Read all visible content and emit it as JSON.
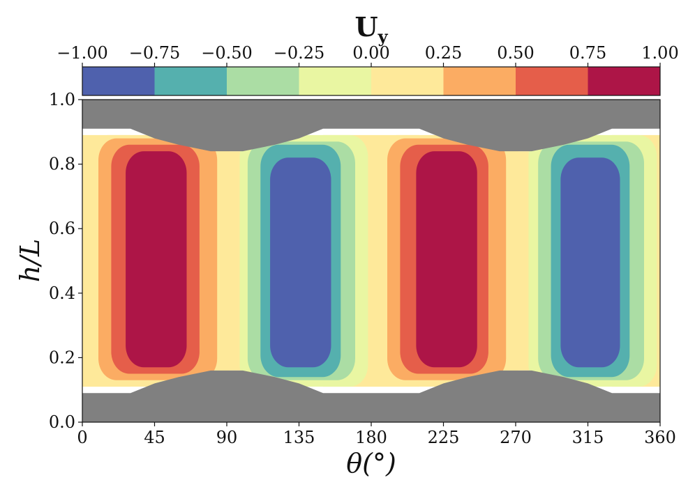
{
  "chart_data": {
    "type": "contour",
    "title": "U",
    "title_subscript": "y",
    "xlabel": "θ(°)",
    "ylabel": "h/L",
    "xlim": [
      0,
      360
    ],
    "ylim": [
      0.0,
      1.0
    ],
    "xticks": [
      "0",
      "45",
      "90",
      "135",
      "180",
      "225",
      "270",
      "315",
      "360"
    ],
    "yticks": [
      "0.0",
      "0.2",
      "0.4",
      "0.6",
      "0.8",
      "1.0"
    ],
    "colorbar": {
      "location": "top",
      "ticks": [
        "−1.00",
        "−0.75",
        "−0.50",
        "−0.25",
        "0.00",
        "0.25",
        "0.50",
        "0.75",
        "1.00"
      ],
      "levels": [
        -1.0,
        -0.75,
        -0.5,
        -0.25,
        0.0,
        0.25,
        0.5,
        0.75,
        1.0
      ],
      "colors": [
        "#4f61ad",
        "#55b0ae",
        "#abdda4",
        "#e9f6a2",
        "#fee99a",
        "#fbac63",
        "#e55e4a",
        "#ad1547"
      ]
    },
    "solid_color": "#808080",
    "pattern": "Uy ≈ sin(2θ): positive lobes near θ=45° and θ=225°, negative lobes near θ=135° and θ=315°",
    "fluid_lower_boundary_hL": [
      [
        0,
        0.11
      ],
      [
        30,
        0.11
      ],
      [
        45,
        0.13
      ],
      [
        60,
        0.15
      ],
      [
        80,
        0.16
      ],
      [
        100,
        0.16
      ],
      [
        120,
        0.15
      ],
      [
        135,
        0.13
      ],
      [
        150,
        0.11
      ],
      [
        210,
        0.11
      ],
      [
        225,
        0.13
      ],
      [
        240,
        0.15
      ],
      [
        260,
        0.16
      ],
      [
        280,
        0.16
      ],
      [
        300,
        0.15
      ],
      [
        315,
        0.13
      ],
      [
        330,
        0.11
      ],
      [
        360,
        0.11
      ]
    ],
    "fluid_upper_boundary_hL": [
      [
        0,
        0.89
      ],
      [
        30,
        0.89
      ],
      [
        45,
        0.87
      ],
      [
        60,
        0.85
      ],
      [
        80,
        0.84
      ],
      [
        100,
        0.84
      ],
      [
        120,
        0.85
      ],
      [
        135,
        0.87
      ],
      [
        150,
        0.89
      ],
      [
        210,
        0.89
      ],
      [
        225,
        0.87
      ],
      [
        240,
        0.85
      ],
      [
        260,
        0.84
      ],
      [
        280,
        0.84
      ],
      [
        300,
        0.85
      ],
      [
        315,
        0.87
      ],
      [
        330,
        0.89
      ],
      [
        360,
        0.89
      ]
    ],
    "solid_lower_top_hL": [
      [
        0,
        0.09
      ],
      [
        30,
        0.09
      ],
      [
        45,
        0.12
      ],
      [
        60,
        0.14
      ],
      [
        80,
        0.16
      ],
      [
        100,
        0.16
      ],
      [
        120,
        0.14
      ],
      [
        135,
        0.12
      ],
      [
        150,
        0.09
      ],
      [
        210,
        0.09
      ],
      [
        225,
        0.12
      ],
      [
        240,
        0.14
      ],
      [
        260,
        0.16
      ],
      [
        280,
        0.16
      ],
      [
        300,
        0.14
      ],
      [
        315,
        0.12
      ],
      [
        330,
        0.09
      ],
      [
        360,
        0.09
      ]
    ],
    "solid_upper_bottom_hL": [
      [
        0,
        0.91
      ],
      [
        30,
        0.91
      ],
      [
        45,
        0.88
      ],
      [
        60,
        0.86
      ],
      [
        80,
        0.84
      ],
      [
        100,
        0.84
      ],
      [
        120,
        0.86
      ],
      [
        135,
        0.88
      ],
      [
        150,
        0.91
      ],
      [
        210,
        0.91
      ],
      [
        225,
        0.88
      ],
      [
        240,
        0.86
      ],
      [
        260,
        0.84
      ],
      [
        280,
        0.84
      ],
      [
        300,
        0.86
      ],
      [
        315,
        0.88
      ],
      [
        330,
        0.91
      ],
      [
        360,
        0.91
      ]
    ],
    "lobes": [
      {
        "center_deg": 45,
        "sign": 1,
        "bands": [
          {
            "level": 4,
            "x": [
              5,
              92
            ],
            "y": [
              0.11,
              0.89
            ]
          },
          {
            "level": 5,
            "x": [
              10,
              84
            ],
            "y": [
              0.13,
              0.88
            ]
          },
          {
            "level": 6,
            "x": [
              18,
              73
            ],
            "y": [
              0.15,
              0.86
            ]
          },
          {
            "level": 7,
            "x": [
              27,
              65
            ],
            "y": [
              0.17,
              0.84
            ]
          }
        ]
      },
      {
        "center_deg": 135,
        "sign": -1,
        "bands": [
          {
            "level": 3,
            "x": [
              98,
              178
            ],
            "y": [
              0.11,
              0.89
            ]
          },
          {
            "level": 2,
            "x": [
              103,
              170
            ],
            "y": [
              0.13,
              0.87
            ]
          },
          {
            "level": 1,
            "x": [
              111,
              161
            ],
            "y": [
              0.14,
              0.86
            ]
          },
          {
            "level": 0,
            "x": [
              117,
              155
            ],
            "y": [
              0.17,
              0.82
            ]
          }
        ]
      },
      {
        "center_deg": 225,
        "sign": 1,
        "bands": [
          {
            "level": 4,
            "x": [
              185,
              272
            ],
            "y": [
              0.11,
              0.89
            ]
          },
          {
            "level": 5,
            "x": [
              190,
              264
            ],
            "y": [
              0.13,
              0.88
            ]
          },
          {
            "level": 6,
            "x": [
              198,
              253
            ],
            "y": [
              0.15,
              0.86
            ]
          },
          {
            "level": 7,
            "x": [
              208,
              246
            ],
            "y": [
              0.17,
              0.84
            ]
          }
        ]
      },
      {
        "center_deg": 315,
        "sign": -1,
        "bands": [
          {
            "level": 3,
            "x": [
              278,
              358
            ],
            "y": [
              0.11,
              0.89
            ]
          },
          {
            "level": 2,
            "x": [
              284,
              350
            ],
            "y": [
              0.13,
              0.87
            ]
          },
          {
            "level": 1,
            "x": [
              292,
              341
            ],
            "y": [
              0.14,
              0.86
            ]
          },
          {
            "level": 0,
            "x": [
              298,
              335
            ],
            "y": [
              0.17,
              0.82
            ]
          }
        ]
      }
    ]
  }
}
